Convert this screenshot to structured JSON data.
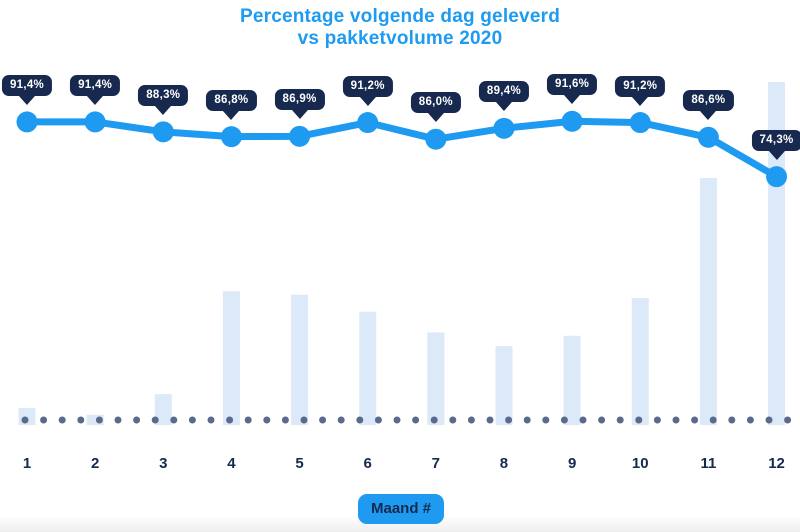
{
  "title": {
    "line1": "Percentage volgende dag geleverd",
    "line2": "vs pakketvolume 2020"
  },
  "colors": {
    "accent_blue": "#1E9BF0",
    "navy": "#17294E",
    "bar_fill": "#DCE9F8",
    "baseline_dot": "#5A6A8C",
    "background": "#FFFFFF"
  },
  "chart_data": {
    "type": "combo (line + bar)",
    "title": "Percentage volgende dag geleverd vs pakketvolume 2020",
    "xlabel": "Maand #",
    "ylabel": "",
    "categories": [
      "1",
      "2",
      "3",
      "4",
      "5",
      "6",
      "7",
      "8",
      "9",
      "10",
      "11",
      "12"
    ],
    "legend_position": "none",
    "grid": false,
    "axes_visible": false,
    "series": [
      {
        "name": "Percentage volgende dag geleverd",
        "type": "line",
        "unit": "%",
        "values": [
          91.4,
          91.4,
          88.3,
          86.8,
          86.9,
          91.2,
          86.0,
          89.4,
          91.6,
          91.2,
          86.6,
          74.3
        ],
        "labels": [
          "91,4%",
          "91,4%",
          "88,3%",
          "86,8%",
          "86,9%",
          "91,2%",
          "86,0%",
          "89,4%",
          "91,6%",
          "91,2%",
          "86,6%",
          "74,3%"
        ],
        "ylim_hint": [
          70,
          95
        ]
      },
      {
        "name": "Pakketvolume",
        "type": "bar",
        "unit": "relative index (% of December peak, unlabeled axis, estimated)",
        "values": [
          5,
          3,
          9,
          39,
          38,
          33,
          27,
          23,
          26,
          37,
          72,
          100
        ]
      }
    ]
  }
}
